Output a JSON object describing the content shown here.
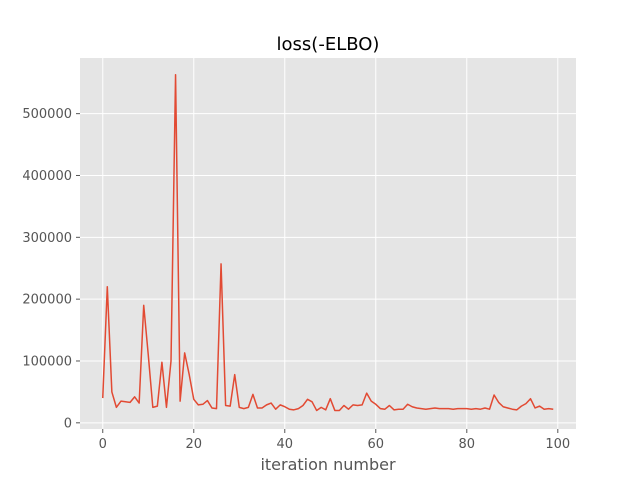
{
  "chart_data": {
    "type": "line",
    "title": "loss(-ELBO)",
    "xlabel": "iteration number",
    "ylabel": "",
    "xlim": [
      -5,
      104
    ],
    "ylim": [
      -10000,
      590000
    ],
    "xticks": [
      0,
      20,
      40,
      60,
      80,
      100
    ],
    "yticks": [
      0,
      100000,
      200000,
      300000,
      400000,
      500000
    ],
    "grid": true,
    "style": "ggplot",
    "colors": {
      "background": "#e5e5e5",
      "grid": "#ffffff",
      "line": "#e24a33"
    },
    "series": [
      {
        "x": [
          0,
          1,
          2,
          3,
          4,
          5,
          6,
          7,
          8,
          9,
          10,
          11,
          12,
          13,
          14,
          15,
          16,
          17,
          18,
          19,
          20,
          21,
          22,
          23,
          24,
          25,
          26,
          27,
          28,
          29,
          30,
          31,
          32,
          33,
          34,
          35,
          36,
          37,
          38,
          39,
          40,
          41,
          42,
          43,
          44,
          45,
          46,
          47,
          48,
          49,
          50,
          51,
          52,
          53,
          54,
          55,
          56,
          57,
          58,
          59,
          60,
          61,
          62,
          63,
          64,
          65,
          66,
          67,
          68,
          69,
          70,
          71,
          72,
          73,
          74,
          75,
          76,
          77,
          78,
          79,
          80,
          81,
          82,
          83,
          84,
          85,
          86,
          87,
          88,
          89,
          90,
          91,
          92,
          93,
          94,
          95,
          96,
          97,
          98,
          99
        ],
        "values": [
          40000,
          220000,
          50000,
          25000,
          35000,
          34000,
          33000,
          42000,
          32000,
          190000,
          110000,
          25000,
          27000,
          98000,
          25000,
          100000,
          563000,
          35000,
          113000,
          78000,
          38000,
          29000,
          30000,
          36000,
          24000,
          23000,
          257000,
          28000,
          27000,
          78000,
          25000,
          23000,
          25000,
          46000,
          24000,
          24000,
          29000,
          32000,
          22000,
          29000,
          26000,
          22000,
          21000,
          23000,
          28000,
          38000,
          34000,
          20000,
          25000,
          21000,
          39000,
          20000,
          20000,
          28000,
          22000,
          29000,
          28000,
          29000,
          48000,
          35000,
          30000,
          23000,
          22000,
          28000,
          21000,
          22000,
          22000,
          30000,
          26000,
          24000,
          23000,
          22000,
          23000,
          24000,
          23000,
          23000,
          23000,
          22000,
          23000,
          23000,
          23000,
          22000,
          23000,
          22000,
          24000,
          22000,
          45000,
          33000,
          26000,
          24000,
          22000,
          21000,
          27000,
          31000,
          39000,
          24000,
          27000,
          22000,
          23000,
          22000
        ]
      }
    ]
  }
}
